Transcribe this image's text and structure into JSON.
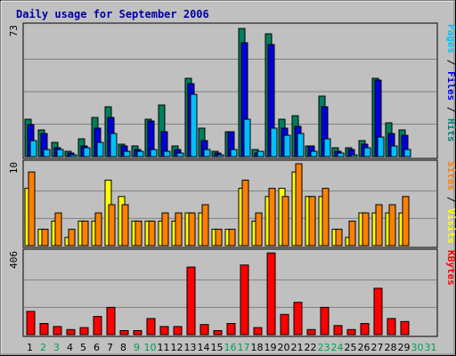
{
  "chart_data": {
    "type": "bar",
    "title": "Daily usage for September 2006",
    "categories": [
      "1",
      "2",
      "3",
      "4",
      "5",
      "6",
      "7",
      "8",
      "9",
      "10",
      "11",
      "12",
      "13",
      "14",
      "15",
      "16",
      "17",
      "18",
      "19",
      "20",
      "21",
      "22",
      "23",
      "24",
      "25",
      "26",
      "27",
      "28",
      "29",
      "30",
      "31"
    ],
    "weekend_days": [
      "2",
      "3",
      "9",
      "10",
      "16",
      "17",
      "23",
      "24",
      "30",
      "31"
    ],
    "panels": [
      {
        "name": "pages-files-hits",
        "axis_max_label": "73",
        "ymax": 73,
        "right_label_parts": [
          {
            "text": "Pages",
            "color": "#00c0ff"
          },
          {
            "text": " / ",
            "color": "#000000"
          },
          {
            "text": "Files",
            "color": "#0000ff"
          },
          {
            "text": " / ",
            "color": "#000000"
          },
          {
            "text": "Hits",
            "color": "#008080"
          }
        ],
        "series": [
          {
            "name": "Hits",
            "color": "#00805c",
            "values": [
              21,
              15,
              8,
              3,
              10,
              22,
              28,
              7,
              6,
              21,
              29,
              6,
              44,
              16,
              3,
              14,
              72,
              4,
              69,
              21,
              23,
              6,
              34,
              5,
              5,
              9,
              44,
              19,
              15,
              0,
              0
            ]
          },
          {
            "name": "Files",
            "color": "#0000dd",
            "values": [
              18,
              13,
              5,
              2,
              6,
              16,
              22,
              6,
              4,
              20,
              14,
              4,
              41,
              9,
              2,
              14,
              64,
              2,
              63,
              16,
              17,
              6,
              28,
              3,
              4,
              7,
              43,
              13,
              12,
              0,
              0
            ]
          },
          {
            "name": "Pages",
            "color": "#00c0ff",
            "values": [
              9,
              4,
              4,
              1,
              5,
              8,
              13,
              3,
              3,
              4,
              3,
              2,
              35,
              4,
              1,
              4,
              21,
              3,
              16,
              12,
              13,
              3,
              10,
              2,
              1,
              5,
              11,
              6,
              4,
              0,
              0
            ]
          }
        ]
      },
      {
        "name": "visits-sites",
        "axis_max_label": "10",
        "ymax": 10,
        "right_label_parts": [
          {
            "text": "Sites",
            "color": "#ff8000"
          },
          {
            "text": " / ",
            "color": "#000000"
          },
          {
            "text": "Visits",
            "color": "#ffff00"
          }
        ],
        "series": [
          {
            "name": "Visits",
            "color": "#ffff00",
            "values": [
              7,
              2,
              3,
              1,
              3,
              3,
              8,
              6,
              3,
              3,
              3,
              3,
              4,
              4,
              2,
              2,
              7,
              3,
              6,
              7,
              9,
              6,
              6,
              2,
              1,
              4,
              4,
              4,
              4,
              0,
              0
            ]
          },
          {
            "name": "Sites",
            "color": "#ff8000",
            "values": [
              9,
              2,
              4,
              2,
              3,
              4,
              5,
              5,
              3,
              3,
              4,
              4,
              4,
              5,
              2,
              2,
              8,
              4,
              7,
              6,
              10,
              6,
              7,
              2,
              3,
              4,
              5,
              5,
              6,
              0,
              0
            ]
          }
        ]
      },
      {
        "name": "kbytes",
        "axis_max_label": "406",
        "ymax": 406,
        "right_label_parts": [
          {
            "text": "KBytes",
            "color": "#ff0000"
          }
        ],
        "series": [
          {
            "name": "KBytes",
            "color": "#ff0000",
            "values": [
              115,
              55,
              40,
              25,
              35,
              90,
              135,
              20,
              20,
              80,
              40,
              40,
              335,
              50,
              20,
              55,
              345,
              35,
              405,
              100,
              160,
              25,
              135,
              45,
              25,
              55,
              230,
              80,
              65,
              0,
              0
            ]
          }
        ]
      }
    ],
    "xlabel": "",
    "grid": true
  },
  "colors": {
    "background": "#c0c0c0",
    "plot_background": "#c0c0c0",
    "gridline": "#808080",
    "title": "#0000a0",
    "weekday_label": "#000000",
    "weekend_label": "#00a050"
  }
}
